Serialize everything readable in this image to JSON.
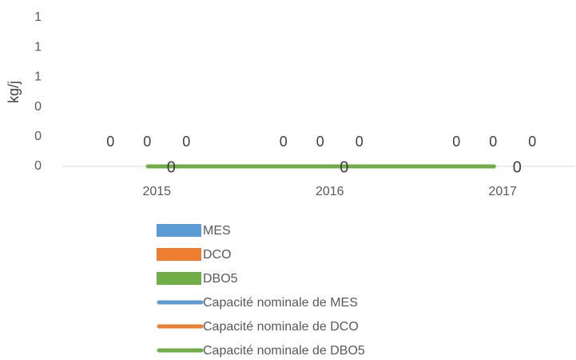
{
  "chart_data": {
    "type": "bar",
    "y_label": "kg/j",
    "categories": [
      "2015",
      "2016",
      "2017"
    ],
    "series": [
      {
        "name": "MES",
        "color": "#5b9bd5",
        "values": [
          0,
          0,
          0
        ]
      },
      {
        "name": "DCO",
        "color": "#ed7d31",
        "values": [
          0,
          0,
          0
        ]
      },
      {
        "name": "DBO5",
        "color": "#70ad47",
        "values": [
          0,
          0,
          0
        ]
      },
      {
        "name": "Capacité nominale de MES",
        "type": "line",
        "color": "#5b9bd5",
        "values": [
          0,
          0,
          0
        ]
      },
      {
        "name": "Capacité nominale de DCO",
        "type": "line",
        "color": "#ed7d31",
        "values": [
          0,
          0,
          0
        ]
      },
      {
        "name": "Capacité nominale de DBO5",
        "type": "line",
        "color": "#70ad47",
        "values": [
          0,
          0,
          0
        ]
      }
    ],
    "ylim": [
      0,
      1
    ],
    "yticks": [
      0,
      {
        "value": 0.2,
        "label": "0"
      },
      {
        "value": 0.4,
        "label": "0"
      },
      {
        "value": 0.6,
        "label": "1"
      },
      {
        "value": 0.8,
        "label": "1"
      },
      1
    ],
    "grid": false,
    "legend": "bottom"
  }
}
